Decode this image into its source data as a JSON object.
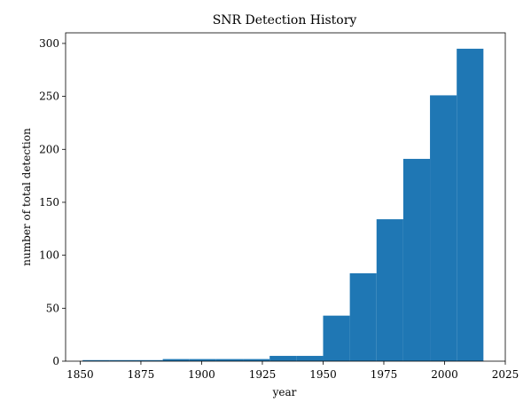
{
  "chart_data": {
    "type": "bar",
    "title": "SNR Detection History",
    "xlabel": "year",
    "ylabel": "number of total detection",
    "xlim": [
      1844,
      2025
    ],
    "ylim": [
      0,
      310
    ],
    "xticks": [
      1850,
      1875,
      1900,
      1925,
      1950,
      1975,
      2000,
      2025
    ],
    "yticks": [
      0,
      50,
      100,
      150,
      200,
      250,
      300
    ],
    "bin_edges": [
      1851,
      1862,
      1873,
      1884,
      1895,
      1906,
      1917,
      1928,
      1939,
      1950,
      1961,
      1972,
      1983,
      1994,
      2005,
      2016
    ],
    "values": [
      1,
      1,
      1,
      2,
      2,
      2,
      2,
      5,
      5,
      43,
      83,
      134,
      191,
      251,
      295
    ],
    "bar_color": "#1f77b4",
    "grid": false,
    "legend": "none"
  }
}
